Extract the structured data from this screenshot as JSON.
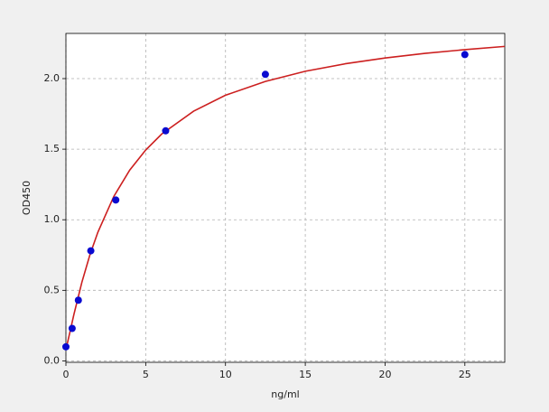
{
  "chart_data": {
    "type": "scatter",
    "x_label": "ng/ml",
    "y_label": "OD450",
    "xlim": [
      0,
      27.5
    ],
    "xticks": [
      0,
      5,
      10,
      15,
      20,
      25
    ],
    "ylim": [
      -0.01,
      2.32
    ],
    "yticks": [
      {
        "value": 0,
        "label": "0.0"
      },
      0.5,
      {
        "value": 1,
        "label": "1.0"
      },
      1.5,
      {
        "value": 2,
        "label": "2.0"
      }
    ],
    "grid": true,
    "series": [
      {
        "type": "scatter",
        "color": "#0a0ad0",
        "x": [
          0,
          0.39,
          0.78,
          1.56,
          3.125,
          6.25,
          12.5,
          25
        ],
        "values": [
          0.1,
          0.23,
          0.43,
          0.78,
          1.14,
          1.63,
          2.03,
          2.17
        ]
      },
      {
        "type": "line",
        "color": "#cc1f1f",
        "x": [
          0,
          0.25,
          0.5,
          1,
          1.5,
          2,
          3,
          4,
          5,
          6,
          8,
          10,
          12.5,
          15,
          17.5,
          20,
          22.5,
          25,
          27.5
        ],
        "values": [
          0.08,
          0.203,
          0.329,
          0.557,
          0.75,
          0.911,
          1.165,
          1.352,
          1.494,
          1.607,
          1.769,
          1.882,
          1.98,
          2.052,
          2.105,
          2.146,
          2.179,
          2.205,
          2.228
        ]
      }
    ]
  }
}
